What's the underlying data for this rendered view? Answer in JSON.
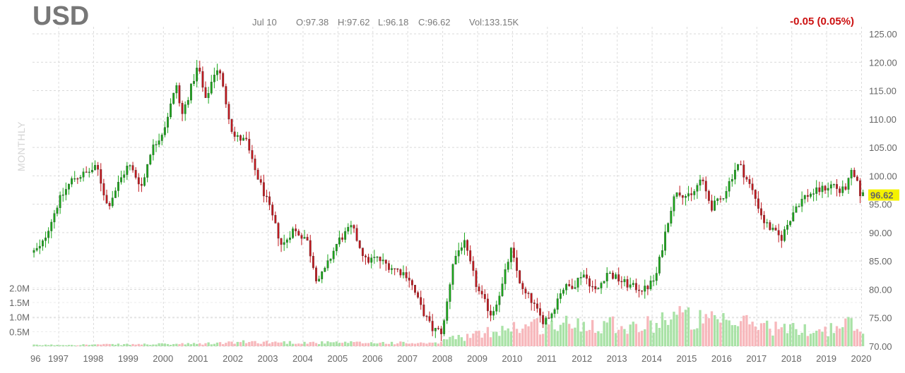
{
  "header": {
    "symbol": "USD",
    "date": "Jul 10",
    "open": "O:97.38",
    "high": "H:97.62",
    "low": "L:96.18",
    "close": "C:96.62",
    "volume": "Vol:133.15K",
    "change": "-0.05 (0.05%)",
    "period": "MONTHLY"
  },
  "colors": {
    "up_candle": "#1aa51a",
    "down_candle": "#c0181e",
    "up_volume": "#a9e2a6",
    "down_volume": "#f7b7bb",
    "last_price_tag": "#f5f200",
    "change_text": "#cc1111"
  },
  "chart_data": {
    "type": "candlestick",
    "grid": true,
    "x_tick_labels": [
      "96",
      "1997",
      "1998",
      "1999",
      "2000",
      "2001",
      "2002",
      "2003",
      "2004",
      "2005",
      "2006",
      "2007",
      "2008",
      "2009",
      "2010",
      "2011",
      "2012",
      "2013",
      "2014",
      "2015",
      "2016",
      "2017",
      "2018",
      "2019",
      "2020"
    ],
    "x_range": [
      1996.75,
      2020.55
    ],
    "price_axis": {
      "ylim": [
        70,
        125
      ],
      "tick_labels": [
        "125.00",
        "120.00",
        "115.00",
        "110.00",
        "105.00",
        "100.00",
        "95.00",
        "90.00",
        "85.00",
        "80.00",
        "75.00",
        "70.00"
      ],
      "last_price": "96.62"
    },
    "volume_axis": {
      "ylim": [
        0,
        2200000
      ],
      "tick_labels": [
        "2.0M",
        "1.5M",
        "1.0M",
        "0.5M"
      ]
    },
    "price_path": [
      [
        1996.75,
        86.5
      ],
      [
        1997.0,
        87.5
      ],
      [
        1997.5,
        95.5
      ],
      [
        1997.9,
        99.5
      ],
      [
        1998.3,
        100.5
      ],
      [
        1998.6,
        101.5
      ],
      [
        1998.9,
        94.5
      ],
      [
        1999.2,
        98.5
      ],
      [
        1999.5,
        102.0
      ],
      [
        1999.9,
        98.0
      ],
      [
        2000.1,
        104.0
      ],
      [
        2000.5,
        108.0
      ],
      [
        2000.9,
        116.5
      ],
      [
        2001.0,
        110.0
      ],
      [
        2001.5,
        119.5
      ],
      [
        2001.7,
        113.0
      ],
      [
        2002.0,
        119.0
      ],
      [
        2002.1,
        118.5
      ],
      [
        2002.5,
        107.0
      ],
      [
        2002.9,
        106.0
      ],
      [
        2003.0,
        103.0
      ],
      [
        2003.5,
        95.0
      ],
      [
        2003.9,
        87.5
      ],
      [
        2004.2,
        90.5
      ],
      [
        2004.6,
        89.0
      ],
      [
        2004.9,
        81.5
      ],
      [
        2005.1,
        83.0
      ],
      [
        2005.5,
        88.5
      ],
      [
        2005.9,
        91.0
      ],
      [
        2006.3,
        85.0
      ],
      [
        2006.6,
        85.5
      ],
      [
        2007.0,
        84.0
      ],
      [
        2007.5,
        82.5
      ],
      [
        2007.9,
        76.5
      ],
      [
        2008.2,
        73.0
      ],
      [
        2008.5,
        72.5
      ],
      [
        2008.8,
        85.0
      ],
      [
        2009.1,
        88.5
      ],
      [
        2009.5,
        80.0
      ],
      [
        2009.9,
        75.5
      ],
      [
        2010.2,
        80.5
      ],
      [
        2010.45,
        87.0
      ],
      [
        2010.8,
        79.5
      ],
      [
        2011.0,
        78.5
      ],
      [
        2011.35,
        74.5
      ],
      [
        2011.6,
        75.5
      ],
      [
        2011.9,
        80.0
      ],
      [
        2012.3,
        81.0
      ],
      [
        2012.5,
        83.0
      ],
      [
        2012.9,
        79.5
      ],
      [
        2013.2,
        83.0
      ],
      [
        2013.6,
        81.5
      ],
      [
        2013.9,
        80.5
      ],
      [
        2014.3,
        80.0
      ],
      [
        2014.6,
        82.0
      ],
      [
        2015.0,
        93.5
      ],
      [
        2015.2,
        97.5
      ],
      [
        2015.6,
        96.0
      ],
      [
        2015.9,
        99.5
      ],
      [
        2016.2,
        94.5
      ],
      [
        2016.5,
        96.0
      ],
      [
        2016.9,
        101.5
      ],
      [
        2017.0,
        102.0
      ],
      [
        2017.4,
        97.0
      ],
      [
        2017.7,
        92.0
      ],
      [
        2018.0,
        90.0
      ],
      [
        2018.2,
        89.0
      ],
      [
        2018.6,
        94.5
      ],
      [
        2018.9,
        96.5
      ],
      [
        2019.3,
        97.5
      ],
      [
        2019.7,
        98.5
      ],
      [
        2019.9,
        97.0
      ],
      [
        2020.1,
        98.5
      ],
      [
        2020.2,
        100.5
      ],
      [
        2020.35,
        99.0
      ],
      [
        2020.45,
        97.0
      ],
      [
        2020.52,
        96.62
      ]
    ],
    "volume_profile": [
      [
        1996.75,
        40000
      ],
      [
        2001.5,
        80000
      ],
      [
        2003.0,
        150000
      ],
      [
        2005.0,
        120000
      ],
      [
        2007.0,
        120000
      ],
      [
        2008.3,
        90000
      ],
      [
        2008.6,
        250000
      ],
      [
        2009.5,
        380000
      ],
      [
        2010.3,
        650000
      ],
      [
        2011.3,
        720000
      ],
      [
        2012.3,
        760000
      ],
      [
        2013.3,
        820000
      ],
      [
        2014.2,
        640000
      ],
      [
        2015.1,
        1100000
      ],
      [
        2015.8,
        900000
      ],
      [
        2016.8,
        760000
      ],
      [
        2017.3,
        820000
      ],
      [
        2018.3,
        580000
      ],
      [
        2019.5,
        560000
      ],
      [
        2020.2,
        760000
      ],
      [
        2020.52,
        420000
      ]
    ]
  }
}
